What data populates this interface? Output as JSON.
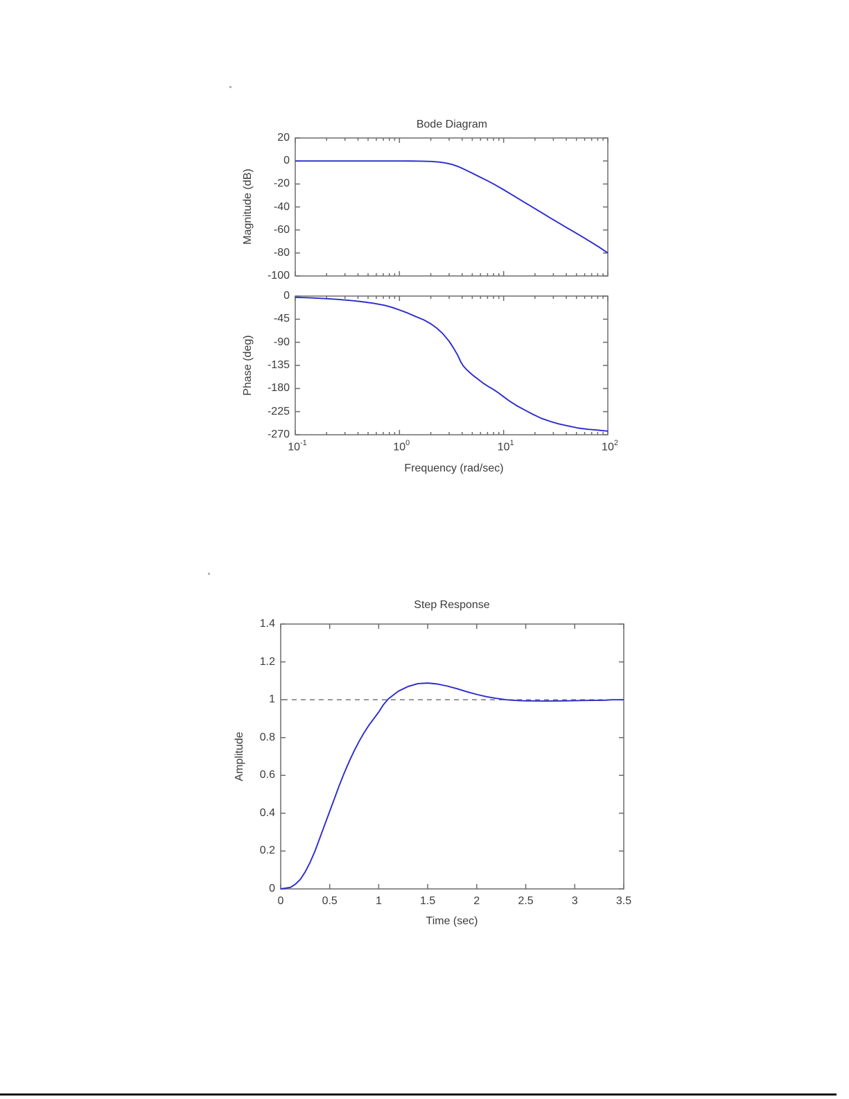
{
  "colors": {
    "curve": "#2a2ad0",
    "axis": "#6b6b6b",
    "text": "#3b3b3b",
    "reference_dash": "#6a6a6a",
    "footer_rule": "#161616"
  },
  "footer": {
    "rule_present": true
  },
  "chart_data": [
    {
      "type": "line",
      "title": "Bode Diagram",
      "xlabel": "Frequency (rad/sec)",
      "xscale": "log",
      "xlim": [
        0.1,
        100
      ],
      "x_major_tick_exponents": [
        -1,
        0,
        1,
        2
      ],
      "grid": false,
      "legend": "none",
      "curve_color": "#2a2ad0",
      "subplots": [
        {
          "name": "magnitude",
          "ylabel": "Magnitude (dB)",
          "ylim": [
            -100,
            20
          ],
          "yticks": [
            20,
            0,
            -20,
            -40,
            -60,
            -80,
            -100
          ],
          "x": [
            0.1,
            0.15,
            0.2,
            0.3,
            0.4,
            0.5,
            0.7,
            1,
            1.3,
            1.6,
            2,
            2.4,
            2.8,
            3.2,
            3.6,
            4,
            4.5,
            5,
            5.5,
            6,
            7,
            8,
            9,
            10,
            12,
            14,
            17,
            20,
            24,
            28,
            33,
            40,
            48,
            57,
            68,
            82,
            100
          ],
          "y": [
            0,
            0,
            0,
            0,
            0,
            0,
            0,
            0,
            -0.05,
            -0.15,
            -0.4,
            -0.9,
            -1.8,
            -3,
            -4.6,
            -6.4,
            -8.6,
            -10.6,
            -12.5,
            -14.2,
            -17.2,
            -20,
            -22.6,
            -25,
            -29.3,
            -33,
            -37.6,
            -41.5,
            -45.8,
            -49.5,
            -53.3,
            -57.8,
            -62,
            -66,
            -70.2,
            -74.8,
            -80
          ]
        },
        {
          "name": "phase",
          "ylabel": "Phase (deg)",
          "ylim": [
            -270,
            0
          ],
          "yticks": [
            0,
            -45,
            -90,
            -135,
            -180,
            -225,
            -270
          ],
          "x": [
            0.1,
            0.14,
            0.19,
            0.25,
            0.33,
            0.43,
            0.56,
            0.72,
            0.85,
            1,
            1.2,
            1.4,
            1.7,
            2,
            2.3,
            2.6,
            3,
            3.3,
            3.6,
            3.9,
            4.1,
            4.4,
            4.8,
            5.2,
            5.7,
            6.3,
            7,
            8,
            9,
            10,
            11.5,
            13.5,
            16,
            19,
            23,
            28,
            34,
            42,
            52,
            65,
            80,
            100
          ],
          "y": [
            -2.5,
            -3.5,
            -4.8,
            -6.3,
            -8.3,
            -10.8,
            -14,
            -18,
            -22,
            -27,
            -33,
            -39,
            -46,
            -54,
            -63,
            -73,
            -88,
            -101,
            -114,
            -129,
            -136,
            -143,
            -150,
            -156,
            -162,
            -169,
            -175,
            -182,
            -189,
            -196,
            -205,
            -214,
            -222,
            -230,
            -238,
            -244,
            -249,
            -253,
            -257,
            -259.5,
            -261,
            -263
          ]
        }
      ]
    },
    {
      "type": "line",
      "title": "Step Response",
      "xlabel": "Time (sec)",
      "ylabel": "Amplitude",
      "xlim": [
        0,
        3.5
      ],
      "ylim": [
        0,
        1.4
      ],
      "xticks": [
        0,
        0.5,
        1,
        1.5,
        2,
        2.5,
        3,
        3.5
      ],
      "yticks": [
        0,
        0.2,
        0.4,
        0.6,
        0.8,
        1,
        1.2,
        1.4
      ],
      "grid": false,
      "legend": "none",
      "curve_color": "#2a2ad0",
      "reference_line": {
        "y": 1,
        "style": "dashed",
        "color": "#6a6a6a"
      },
      "overshoot_peak": 1.09,
      "x": [
        0,
        0.1,
        0.15,
        0.2,
        0.25,
        0.3,
        0.35,
        0.4,
        0.45,
        0.5,
        0.55,
        0.6,
        0.65,
        0.7,
        0.75,
        0.8,
        0.85,
        0.9,
        0.95,
        1,
        1.05,
        1.1,
        1.2,
        1.3,
        1.4,
        1.5,
        1.6,
        1.7,
        1.8,
        1.9,
        2,
        2.1,
        2.2,
        2.3,
        2.4,
        2.5,
        2.7,
        2.9,
        3.1,
        3.3,
        3.38,
        3.5
      ],
      "y": [
        0,
        0.008,
        0.025,
        0.05,
        0.09,
        0.14,
        0.2,
        0.27,
        0.34,
        0.41,
        0.48,
        0.55,
        0.615,
        0.675,
        0.73,
        0.78,
        0.825,
        0.865,
        0.9,
        0.935,
        0.975,
        1.005,
        1.045,
        1.07,
        1.085,
        1.088,
        1.083,
        1.072,
        1.058,
        1.042,
        1.028,
        1.016,
        1.007,
        1.0,
        0.996,
        0.994,
        0.993,
        0.994,
        0.996,
        0.997,
        1.0,
        1.0
      ]
    }
  ]
}
